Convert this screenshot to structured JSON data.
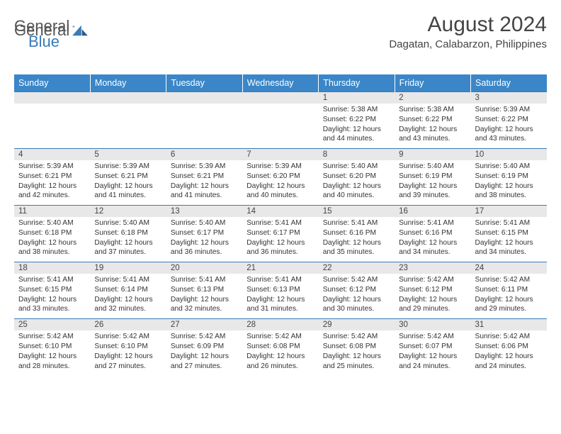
{
  "logo": {
    "text1": "General",
    "text2": "Blue"
  },
  "title": "August 2024",
  "location": "Dagatan, Calabarzon, Philippines",
  "colors": {
    "header_bg": "#3a86c8",
    "header_text": "#ffffff",
    "daynum_bg": "#e8e8e8",
    "border": "#3a7ab8",
    "text": "#333333",
    "logo_blue": "#3a7ab8"
  },
  "weekdays": [
    "Sunday",
    "Monday",
    "Tuesday",
    "Wednesday",
    "Thursday",
    "Friday",
    "Saturday"
  ],
  "weeks": [
    [
      null,
      null,
      null,
      null,
      {
        "n": "1",
        "sr": "5:38 AM",
        "ss": "6:22 PM",
        "dl": "12 hours and 44 minutes."
      },
      {
        "n": "2",
        "sr": "5:38 AM",
        "ss": "6:22 PM",
        "dl": "12 hours and 43 minutes."
      },
      {
        "n": "3",
        "sr": "5:39 AM",
        "ss": "6:22 PM",
        "dl": "12 hours and 43 minutes."
      }
    ],
    [
      {
        "n": "4",
        "sr": "5:39 AM",
        "ss": "6:21 PM",
        "dl": "12 hours and 42 minutes."
      },
      {
        "n": "5",
        "sr": "5:39 AM",
        "ss": "6:21 PM",
        "dl": "12 hours and 41 minutes."
      },
      {
        "n": "6",
        "sr": "5:39 AM",
        "ss": "6:21 PM",
        "dl": "12 hours and 41 minutes."
      },
      {
        "n": "7",
        "sr": "5:39 AM",
        "ss": "6:20 PM",
        "dl": "12 hours and 40 minutes."
      },
      {
        "n": "8",
        "sr": "5:40 AM",
        "ss": "6:20 PM",
        "dl": "12 hours and 40 minutes."
      },
      {
        "n": "9",
        "sr": "5:40 AM",
        "ss": "6:19 PM",
        "dl": "12 hours and 39 minutes."
      },
      {
        "n": "10",
        "sr": "5:40 AM",
        "ss": "6:19 PM",
        "dl": "12 hours and 38 minutes."
      }
    ],
    [
      {
        "n": "11",
        "sr": "5:40 AM",
        "ss": "6:18 PM",
        "dl": "12 hours and 38 minutes."
      },
      {
        "n": "12",
        "sr": "5:40 AM",
        "ss": "6:18 PM",
        "dl": "12 hours and 37 minutes."
      },
      {
        "n": "13",
        "sr": "5:40 AM",
        "ss": "6:17 PM",
        "dl": "12 hours and 36 minutes."
      },
      {
        "n": "14",
        "sr": "5:41 AM",
        "ss": "6:17 PM",
        "dl": "12 hours and 36 minutes."
      },
      {
        "n": "15",
        "sr": "5:41 AM",
        "ss": "6:16 PM",
        "dl": "12 hours and 35 minutes."
      },
      {
        "n": "16",
        "sr": "5:41 AM",
        "ss": "6:16 PM",
        "dl": "12 hours and 34 minutes."
      },
      {
        "n": "17",
        "sr": "5:41 AM",
        "ss": "6:15 PM",
        "dl": "12 hours and 34 minutes."
      }
    ],
    [
      {
        "n": "18",
        "sr": "5:41 AM",
        "ss": "6:15 PM",
        "dl": "12 hours and 33 minutes."
      },
      {
        "n": "19",
        "sr": "5:41 AM",
        "ss": "6:14 PM",
        "dl": "12 hours and 32 minutes."
      },
      {
        "n": "20",
        "sr": "5:41 AM",
        "ss": "6:13 PM",
        "dl": "12 hours and 32 minutes."
      },
      {
        "n": "21",
        "sr": "5:41 AM",
        "ss": "6:13 PM",
        "dl": "12 hours and 31 minutes."
      },
      {
        "n": "22",
        "sr": "5:42 AM",
        "ss": "6:12 PM",
        "dl": "12 hours and 30 minutes."
      },
      {
        "n": "23",
        "sr": "5:42 AM",
        "ss": "6:12 PM",
        "dl": "12 hours and 29 minutes."
      },
      {
        "n": "24",
        "sr": "5:42 AM",
        "ss": "6:11 PM",
        "dl": "12 hours and 29 minutes."
      }
    ],
    [
      {
        "n": "25",
        "sr": "5:42 AM",
        "ss": "6:10 PM",
        "dl": "12 hours and 28 minutes."
      },
      {
        "n": "26",
        "sr": "5:42 AM",
        "ss": "6:10 PM",
        "dl": "12 hours and 27 minutes."
      },
      {
        "n": "27",
        "sr": "5:42 AM",
        "ss": "6:09 PM",
        "dl": "12 hours and 27 minutes."
      },
      {
        "n": "28",
        "sr": "5:42 AM",
        "ss": "6:08 PM",
        "dl": "12 hours and 26 minutes."
      },
      {
        "n": "29",
        "sr": "5:42 AM",
        "ss": "6:08 PM",
        "dl": "12 hours and 25 minutes."
      },
      {
        "n": "30",
        "sr": "5:42 AM",
        "ss": "6:07 PM",
        "dl": "12 hours and 24 minutes."
      },
      {
        "n": "31",
        "sr": "5:42 AM",
        "ss": "6:06 PM",
        "dl": "12 hours and 24 minutes."
      }
    ]
  ]
}
